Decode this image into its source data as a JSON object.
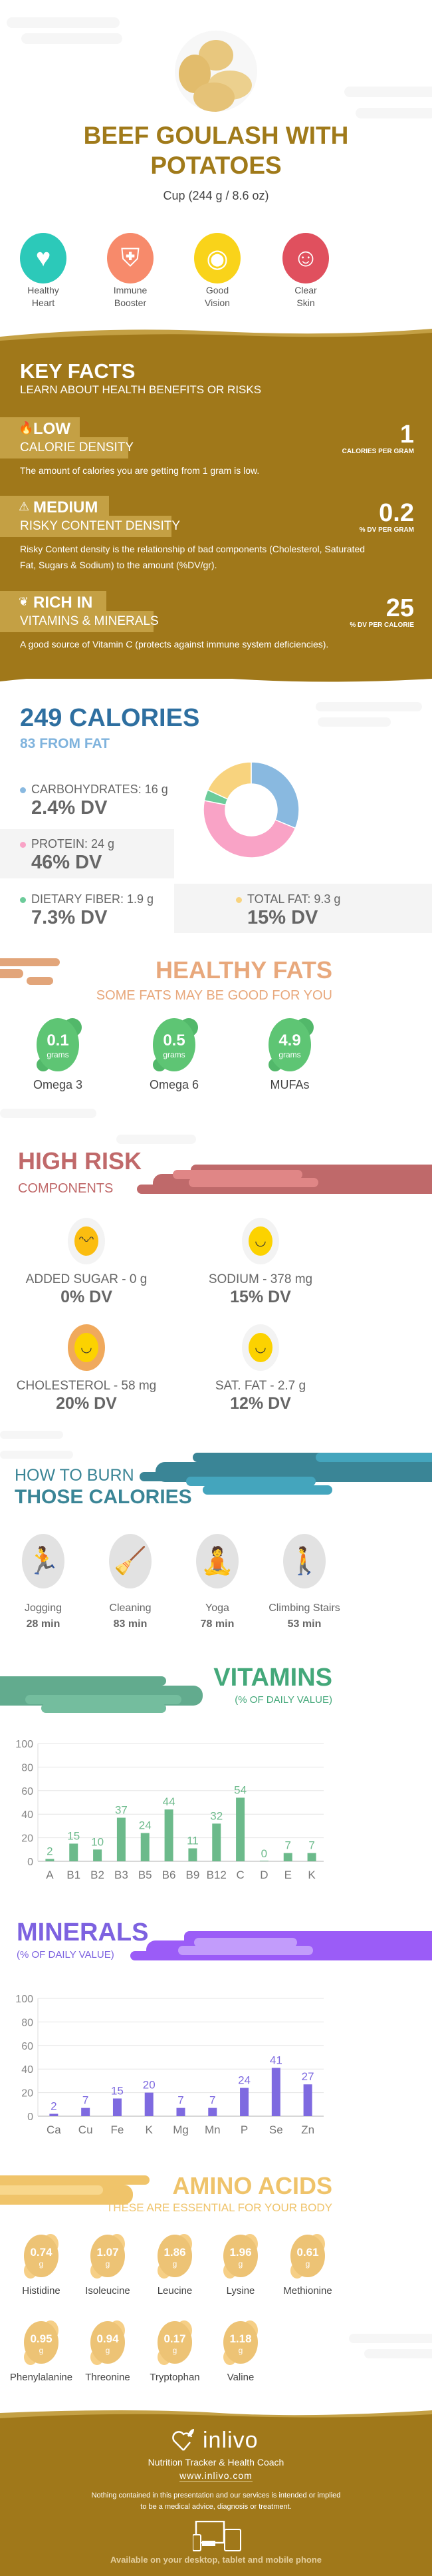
{
  "header": {
    "title_line1": "BEEF GOULASH WITH",
    "title_line2": "POTATOES",
    "serving": "Cup (244 g / 8.6 oz)",
    "food_image": "potatoes-image"
  },
  "benefits": [
    {
      "icon": "heart-icon",
      "line1": "Healthy",
      "line2": "Heart",
      "color": "#2cc9b9"
    },
    {
      "icon": "shield-icon",
      "line1": "Immune",
      "line2": "Booster",
      "color": "#f78a6b"
    },
    {
      "icon": "eye-icon",
      "line1": "Good",
      "line2": "Vision",
      "color": "#f9d31a"
    },
    {
      "icon": "face-mask-icon",
      "line1": "Clear",
      "line2": "Skin",
      "color": "#e0505e"
    }
  ],
  "key_facts": {
    "title": "KEY FACTS",
    "subtitle": "LEARN ABOUT HEALTH BENEFITS OR RISKS",
    "items": [
      {
        "icon": "flame-icon",
        "level": "LOW",
        "label": "CALORIE DENSITY",
        "value": "1",
        "unit": "CALORIES PER GRAM",
        "desc": "The amount of calories you are getting from 1 gram is low."
      },
      {
        "icon": "warning-icon",
        "level": "MEDIUM",
        "label": "RISKY CONTENT DENSITY",
        "value": "0.2",
        "unit": "% DV PER GRAM",
        "desc": "Risky Content density is the relationship of bad components (Cholesterol, Saturated Fat, Sugars & Sodium) to the amount (%DV/gr)."
      },
      {
        "icon": "leaf-icon",
        "level": "RICH  IN",
        "label": "VITAMINS & MINERALS",
        "value": "25",
        "unit": "% DV PER CALORIE",
        "desc": "A good source of Vitamin C (protects against immune system deficiencies)."
      }
    ]
  },
  "calories": {
    "title": "249 CALORIES",
    "from_fat": "83 FROM FAT",
    "nutrients": [
      {
        "label": "CARBOHYDRATES: 16 g",
        "dv": "2.4% DV",
        "grams": 16,
        "color": "#89b9e0"
      },
      {
        "label": "PROTEIN: 24 g",
        "dv": "46% DV",
        "grams": 24,
        "color": "#f9a3c6"
      },
      {
        "label": "DIETARY FIBER: 1.9 g",
        "dv": "7.3% DV",
        "grams": 1.9,
        "color": "#6ccb9a"
      },
      {
        "label": "TOTAL FAT: 9.3 g",
        "dv": "15% DV",
        "grams": 9.3,
        "color": "#f8d37e"
      }
    ]
  },
  "healthy_fats": {
    "title": "HEALTHY FATS",
    "subtitle": "SOME FATS MAY BE GOOD FOR YOU",
    "items": [
      {
        "value": "0.1",
        "unit": "grams",
        "name": "Omega 3"
      },
      {
        "value": "0.5",
        "unit": "grams",
        "name": "Omega 6"
      },
      {
        "value": "4.9",
        "unit": "grams",
        "name": "MUFAs"
      }
    ]
  },
  "high_risk": {
    "title": "HIGH RISK",
    "subtitle": "COMPONENTS",
    "items": [
      {
        "icon": "grinning-face-icon",
        "label": "ADDED SUGAR - 0 g",
        "dv": "0% DV"
      },
      {
        "icon": "smiley-face-icon",
        "label": "SODIUM - 378 mg",
        "dv": "15% DV"
      },
      {
        "icon": "smiley-face-icon",
        "label": "CHOLESTEROL - 58 mg",
        "dv": "20% DV"
      },
      {
        "icon": "smiley-face-icon",
        "label": "SAT. FAT - 2.7 g",
        "dv": "12% DV"
      }
    ]
  },
  "burn": {
    "title_line1": "HOW TO BURN",
    "title_line2": "THOSE CALORIES",
    "activities": [
      {
        "icon": "jogging-icon",
        "name": "Jogging",
        "time": "28 min"
      },
      {
        "icon": "cleaning-icon",
        "name": "Cleaning",
        "time": "83 min"
      },
      {
        "icon": "yoga-icon",
        "name": "Yoga",
        "time": "78 min"
      },
      {
        "icon": "climbing-stairs-icon",
        "name": "Climbing Stairs",
        "time": "53 min"
      }
    ]
  },
  "chart_data": [
    {
      "type": "bar",
      "title": "VITAMINS",
      "subtitle": "(% OF DAILY VALUE)",
      "categories": [
        "A",
        "B1",
        "B2",
        "B3",
        "B5",
        "B6",
        "B9",
        "B12",
        "C",
        "D",
        "E",
        "K"
      ],
      "values": [
        2,
        15,
        10,
        37,
        24,
        44,
        11,
        32,
        54,
        0,
        7,
        7
      ],
      "yticks": [
        0,
        20,
        40,
        60,
        80,
        100
      ],
      "ylim": [
        0,
        100
      ],
      "grid": true,
      "color": "#6cba8b"
    },
    {
      "type": "bar",
      "title": "MINERALS",
      "subtitle": "(% OF DAILY VALUE)",
      "categories": [
        "Ca",
        "Cu",
        "Fe",
        "K",
        "Mg",
        "Mn",
        "P",
        "Se",
        "Zn"
      ],
      "values": [
        2,
        7,
        15,
        20,
        7,
        7,
        24,
        41,
        27
      ],
      "yticks": [
        0,
        20,
        40,
        60,
        80,
        100
      ],
      "ylim": [
        0,
        100
      ],
      "grid": true,
      "color": "#7e6ae0"
    }
  ],
  "amino": {
    "title": "AMINO ACIDS",
    "subtitle": "THESE ARE ESSENTIAL FOR YOUR BODY",
    "items": [
      {
        "value": "0.74",
        "unit": "g",
        "name": "Histidine"
      },
      {
        "value": "1.07",
        "unit": "g",
        "name": "Isoleucine"
      },
      {
        "value": "1.86",
        "unit": "g",
        "name": "Leucine"
      },
      {
        "value": "1.96",
        "unit": "g",
        "name": "Lysine"
      },
      {
        "value": "0.61",
        "unit": "g",
        "name": "Methionine"
      },
      {
        "value": "0.95",
        "unit": "g",
        "name": "Phenylalanine"
      },
      {
        "value": "0.94",
        "unit": "g",
        "name": "Threonine"
      },
      {
        "value": "0.17",
        "unit": "g",
        "name": "Tryptophan"
      },
      {
        "value": "1.18",
        "unit": "g",
        "name": "Valine"
      }
    ]
  },
  "footer": {
    "brand": "inlivo",
    "tagline": "Nutrition Tracker & Health Coach",
    "url": "www.inlivo.com",
    "disclaimer_line1": "Nothing contained in this presentation and our services is intended or implied",
    "disclaimer_line2": "to be a medical advice, diagnosis or treatment.",
    "available": "Available on your desktop, tablet and mobile phone"
  },
  "colors": {
    "gold": "#a07a1a",
    "gold_light": "#c4a044",
    "blue": "#2e6fa0",
    "orange": "#e8a87c",
    "red": "#c0696a",
    "teal": "#3a8596",
    "green": "#44a87a",
    "purple": "#7d62e0",
    "amber": "#efc36a"
  }
}
